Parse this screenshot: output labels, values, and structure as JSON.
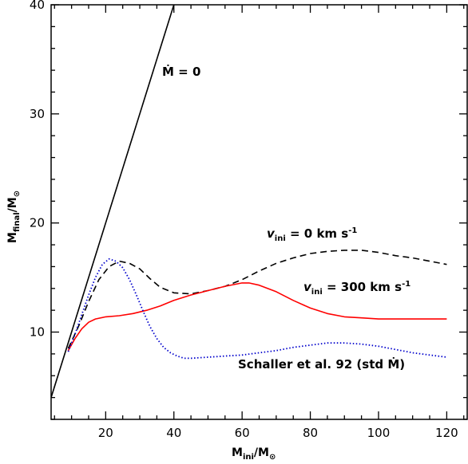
{
  "chart_data": {
    "type": "line",
    "title": "",
    "xlabel": "M_ini/M_⊙",
    "ylabel": "M_final/M_⊙",
    "xlim": [
      4,
      126
    ],
    "ylim": [
      2,
      40
    ],
    "x_ticks_labeled": [
      20,
      40,
      60,
      80,
      100,
      120
    ],
    "y_ticks_labeled": [
      10,
      20,
      30,
      40
    ],
    "grid": false,
    "legend": "none",
    "series": [
      {
        "name": "Ṁ = 0",
        "style": "solid",
        "color": "#000000",
        "x": [
          4,
          40
        ],
        "y": [
          4,
          40
        ]
      },
      {
        "name": "v_ini = 0 km s^-1",
        "style": "dashed",
        "color": "#000000",
        "x": [
          9,
          12,
          15,
          18,
          21,
          24,
          27,
          30,
          33,
          36,
          40,
          45,
          50,
          55,
          60,
          65,
          70,
          75,
          80,
          85,
          90,
          95,
          100,
          105,
          110,
          115,
          120
        ],
        "y": [
          8.5,
          10.5,
          12.8,
          14.8,
          16.0,
          16.5,
          16.3,
          15.8,
          14.9,
          14.1,
          13.6,
          13.5,
          13.8,
          14.2,
          14.8,
          15.6,
          16.3,
          16.8,
          17.2,
          17.4,
          17.5,
          17.5,
          17.3,
          17.0,
          16.8,
          16.5,
          16.2
        ]
      },
      {
        "name": "v_ini = 300 km s^-1",
        "style": "solid",
        "color": "#ff0000",
        "x": [
          9,
          11,
          13,
          15,
          17,
          20,
          24,
          28,
          32,
          36,
          40,
          45,
          50,
          55,
          60,
          62,
          65,
          70,
          75,
          80,
          85,
          90,
          95,
          100,
          105,
          110,
          115,
          120
        ],
        "y": [
          8.3,
          9.4,
          10.3,
          10.9,
          11.2,
          11.4,
          11.5,
          11.7,
          12.0,
          12.4,
          12.9,
          13.4,
          13.8,
          14.2,
          14.5,
          14.5,
          14.3,
          13.7,
          12.9,
          12.2,
          11.7,
          11.4,
          11.3,
          11.2,
          11.2,
          11.2,
          11.2,
          11.2
        ]
      },
      {
        "name": "Schaller et al. 92 (std Ṁ)",
        "style": "dotted",
        "color": "#0000cc",
        "x": [
          9,
          11,
          13,
          15,
          17,
          19,
          21,
          23,
          25,
          27,
          29,
          31,
          33,
          35,
          37,
          39,
          41,
          43,
          45,
          50,
          55,
          60,
          65,
          70,
          75,
          80,
          85,
          90,
          95,
          100,
          105,
          110,
          115,
          120
        ],
        "y": [
          8.2,
          9.8,
          11.6,
          13.4,
          15.0,
          16.2,
          16.7,
          16.5,
          15.9,
          14.8,
          13.4,
          11.9,
          10.5,
          9.4,
          8.6,
          8.1,
          7.8,
          7.6,
          7.6,
          7.7,
          7.8,
          7.9,
          8.1,
          8.3,
          8.6,
          8.8,
          9.0,
          9.0,
          8.9,
          8.7,
          8.4,
          8.1,
          7.9,
          7.7
        ]
      }
    ],
    "annotations": {
      "mdot_zero": "Ṁ = 0",
      "v_ini_0": "v_ini = 0 km s^-1",
      "v_ini_300": "v_ini = 300 km s^-1",
      "schaller": "Schaller et al. 92 (std Ṁ)"
    },
    "text_parts": {
      "x_main": "M",
      "x_sub": "ini",
      "x_rest": "/M",
      "x_sun_sub": "⊙",
      "y_main": "M",
      "y_sub": "final",
      "y_rest": "/M",
      "y_sun_sub": "⊙",
      "mdot_symbol": "Ṁ",
      "mdot_rest": " = 0",
      "v_symbol": "v",
      "v_sub": "ini",
      "v0_rest": " = 0 km s",
      "v300_rest": " = 300 km s",
      "exp": "-1",
      "schaller_text": "Schaller et al. 92 (std Ṁ)"
    }
  }
}
